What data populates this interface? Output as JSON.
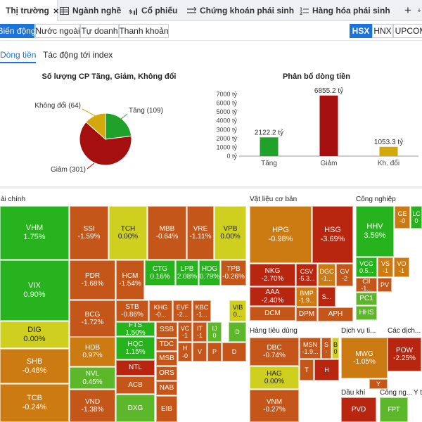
{
  "tabs": [
    {
      "label": "Thị trường",
      "icon": "none"
    },
    {
      "label": "Ngành nghề",
      "icon": "grid-icon"
    },
    {
      "label": "Cổ phiếu",
      "icon": "stock-icon"
    },
    {
      "label": "Chứng khoán phái sinh",
      "icon": "derivative-icon"
    },
    {
      "label": "Hàng hóa phái sinh",
      "icon": "commodity-icon"
    }
  ],
  "tab_close": "×",
  "tab_add": "+",
  "subtabs": [
    "Biến động",
    "Nước ngoài",
    "Tự doanh",
    "Thanh khoản"
  ],
  "exchanges": [
    "HSX",
    "HNX",
    "UPCOM"
  ],
  "content_tabs": [
    "Dòng tiền",
    "Tác động tới index"
  ],
  "pie": {
    "title": "Số lượng CP Tăng, Giảm, Không đổi",
    "slices": [
      {
        "label": "Tăng (109)",
        "value": 109,
        "color": "#1fa12a"
      },
      {
        "label": "Giảm (301)",
        "value": 301,
        "color": "#a50f0f"
      },
      {
        "label": "Không đổi (64)",
        "value": 64,
        "color": "#d2a80a"
      }
    ]
  },
  "chart_data": {
    "type": "bar",
    "title": "Phân bổ dòng tiền",
    "categories": [
      "Tăng",
      "Giảm",
      "Kh. đổi"
    ],
    "values": [
      2122.2,
      6855.2,
      1053.3
    ],
    "value_labels": [
      "2122.2 tỷ",
      "6855.2 tỷ",
      "1053.3 tỷ"
    ],
    "colors": [
      "#1fa12a",
      "#a50f0f",
      "#d2a80a"
    ],
    "ylim": [
      0,
      7000
    ],
    "yticks": [
      "0 tỷ",
      "1000 tỷ",
      "2000 tỷ",
      "3000 tỷ",
      "4000 tỷ",
      "5000 tỷ",
      "6000 tỷ",
      "7000 tỷ"
    ],
    "grid": false,
    "xlabel": "",
    "ylabel": ""
  },
  "treemap": {
    "sectors": [
      "ài chính",
      "Vật liệu cơ bản",
      "Công nghiệp",
      "Hàng tiêu dùng",
      "Dịch vụ ti...",
      "Các dịch...",
      "Dầu khí",
      "Công ng...",
      "Y t"
    ],
    "colors": {
      "up_strong": "#27b31d",
      "up": "#5cb82a",
      "flat": "#cfcf1f",
      "down_light": "#cc7a12",
      "down": "#c4561a",
      "down_strong": "#b8260f"
    }
  },
  "cells": [
    {
      "t": "VHM",
      "p": "1.75%"
    },
    {
      "t": "SSI",
      "p": "-1.59%"
    },
    {
      "t": "TCH",
      "p": "0.00%"
    },
    {
      "t": "MBB",
      "p": "-0.64%"
    },
    {
      "t": "VRE",
      "p": "-1.11%"
    },
    {
      "t": "VPB",
      "p": "0.00%"
    },
    {
      "t": "VIX",
      "p": "0.90%"
    },
    {
      "t": "PDR",
      "p": "-1.68%"
    },
    {
      "t": "HCM",
      "p": "-1.54%"
    },
    {
      "t": "CTG",
      "p": "0.16%"
    },
    {
      "t": "LPB",
      "p": "2.08%"
    },
    {
      "t": "HDG",
      "p": "0.79%"
    },
    {
      "t": "TPB",
      "p": "-0.26%"
    },
    {
      "t": "BCG",
      "p": "-1.72%"
    },
    {
      "t": "STB",
      "p": "-0.86%"
    },
    {
      "t": "KHG",
      "p": "-0..."
    },
    {
      "t": "EVF",
      "p": "-2..."
    },
    {
      "t": "KBC",
      "p": "-1..."
    },
    {
      "t": "VIB",
      "p": "0..."
    },
    {
      "t": "DIG",
      "p": "0.00%"
    },
    {
      "t": "FTS",
      "p": "1.50%"
    },
    {
      "t": "SSB",
      "p": ""
    },
    {
      "t": "VC",
      "p": "-1"
    },
    {
      "t": "IT",
      "p": "-1"
    },
    {
      "t": "IJ",
      "p": "0"
    },
    {
      "t": "D",
      "p": ""
    },
    {
      "t": "HDB",
      "p": "0.97%"
    },
    {
      "t": "HQC",
      "p": "1.15%"
    },
    {
      "t": "TDC",
      "p": ""
    },
    {
      "t": "H",
      "p": "-0"
    },
    {
      "t": "V",
      "p": ""
    },
    {
      "t": "P",
      "p": ""
    },
    {
      "t": "D",
      "p": ""
    },
    {
      "t": "SHB",
      "p": "-0.48%"
    },
    {
      "t": "NVL",
      "p": "0.45%"
    },
    {
      "t": "MSB",
      "p": ""
    },
    {
      "t": "NTL",
      "p": ""
    },
    {
      "t": "ORS",
      "p": ""
    },
    {
      "t": "TCB",
      "p": "-0.24%"
    },
    {
      "t": "VND",
      "p": "-1.38%"
    },
    {
      "t": "ACB",
      "p": ""
    },
    {
      "t": "NAB",
      "p": ""
    },
    {
      "t": "DXG",
      "p": ""
    },
    {
      "t": "EIB",
      "p": ""
    },
    {
      "t": "HPG",
      "p": "-0.98%"
    },
    {
      "t": "HSG",
      "p": "-3.69%"
    },
    {
      "t": "NKG",
      "p": "-2.70%"
    },
    {
      "t": "CSV",
      "p": "-5.3..."
    },
    {
      "t": "DGC",
      "p": "-1..."
    },
    {
      "t": "GV",
      "p": "-2"
    },
    {
      "t": "AAA",
      "p": "-2.40%"
    },
    {
      "t": "BMP",
      "p": "-1.9..."
    },
    {
      "t": "S...",
      "p": ""
    },
    {
      "t": "DCM",
      "p": ""
    },
    {
      "t": "DPM",
      "p": ""
    },
    {
      "t": "APH",
      "p": ""
    },
    {
      "t": "HHV",
      "p": "3.59%"
    },
    {
      "t": "GE",
      "p": "-0"
    },
    {
      "t": "LC",
      "p": "0"
    },
    {
      "t": "VCG",
      "p": "0.5..."
    },
    {
      "t": "VS",
      "p": "-1"
    },
    {
      "t": "VO",
      "p": "-1"
    },
    {
      "t": "CII",
      "p": "-1..."
    },
    {
      "t": "PV",
      "p": ""
    },
    {
      "t": "PC1",
      "p": ""
    },
    {
      "t": "HHS",
      "p": ""
    },
    {
      "t": "DBC",
      "p": "-0.74%"
    },
    {
      "t": "MSN",
      "p": "-1.9..."
    },
    {
      "t": "S",
      "p": "-"
    },
    {
      "t": "B",
      "p": "0"
    },
    {
      "t": "HAG",
      "p": "0.00%"
    },
    {
      "t": "T",
      "p": ""
    },
    {
      "t": "H",
      "p": ""
    },
    {
      "t": "VNM",
      "p": "-0.27%"
    },
    {
      "t": "MWG",
      "p": "-1.05%"
    },
    {
      "t": "Y",
      "p": ""
    },
    {
      "t": "POW",
      "p": "-2.25%"
    },
    {
      "t": "PVD",
      "p": ""
    },
    {
      "t": "FPT",
      "p": ""
    }
  ]
}
